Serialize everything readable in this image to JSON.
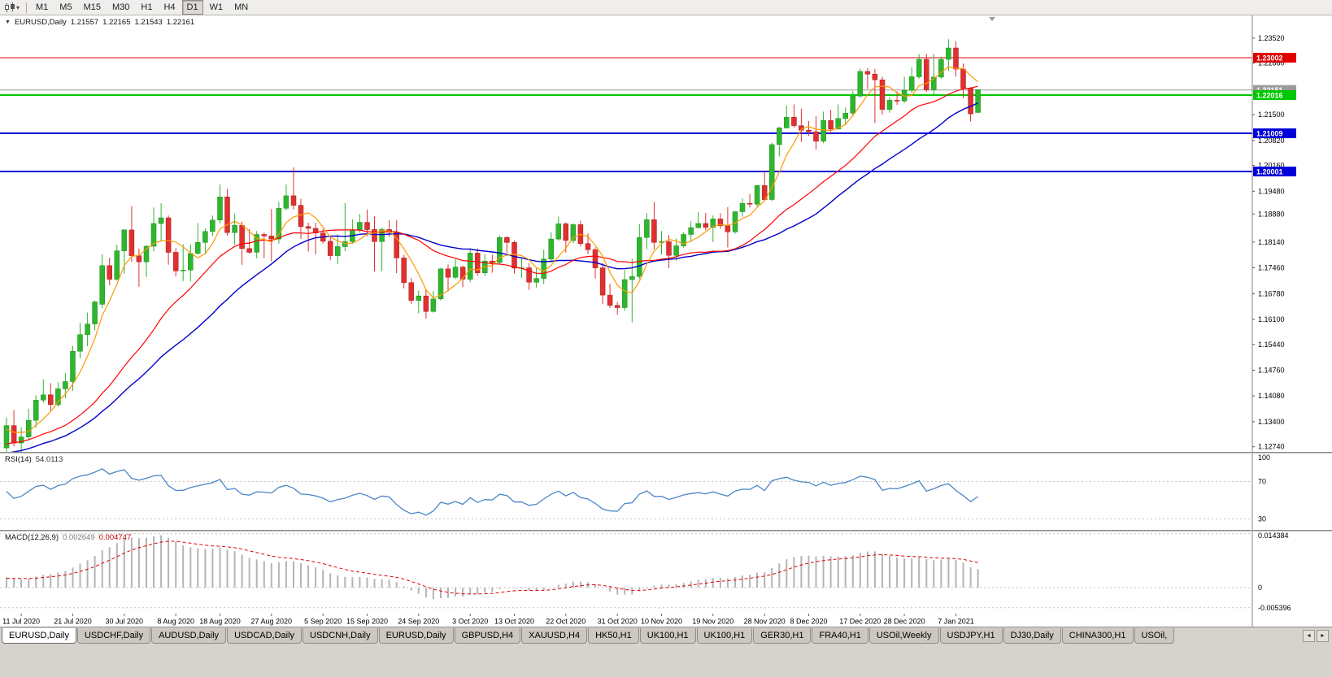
{
  "colors": {
    "up": "#2eb62e",
    "up_border": "#1f8a1f",
    "down": "#e03030",
    "down_border": "#a51c1c",
    "ma_fast": "#ff9900",
    "ma_mid": "#ff0000",
    "ma_slow": "#0000cc",
    "rsi_line": "#4a86c8",
    "macd_hist": "#b4b4b4",
    "macd_signal": "#e00000",
    "grid_dash": "#c4c4c4",
    "axis_border": "#808080",
    "panel_bg": "#ffffff",
    "chrome_bg": "#d6d3ce"
  },
  "toolbar": {
    "chart_type_icon": "candlestick-chart-icon",
    "dropdown_icon": "chevron-down-icon",
    "timeframes": [
      "M1",
      "M5",
      "M15",
      "M30",
      "H1",
      "H4",
      "D1",
      "W1",
      "MN"
    ],
    "active_timeframe": "D1"
  },
  "chart_header": {
    "symbol": "EURUSD,Daily",
    "open": "1.21557",
    "high": "1.22165",
    "low": "1.21543",
    "close": "1.22161"
  },
  "price_axis": {
    "ticks": [
      1.2352,
      1.2286,
      1.215,
      1.2082,
      1.2016,
      1.1948,
      1.1888,
      1.1814,
      1.1746,
      1.1678,
      1.161,
      1.1544,
      1.1476,
      1.1408,
      1.134,
      1.1274
    ]
  },
  "x_axis": {
    "labels": [
      {
        "label": "11 Jul 2020",
        "index": 2
      },
      {
        "label": "21 Jul 2020",
        "index": 9
      },
      {
        "label": "30 Jul 2020",
        "index": 16
      },
      {
        "label": "8 Aug 2020",
        "index": 23
      },
      {
        "label": "18 Aug 2020",
        "index": 29
      },
      {
        "label": "27 Aug 2020",
        "index": 36
      },
      {
        "label": "5 Sep 2020",
        "index": 43
      },
      {
        "label": "15 Sep 2020",
        "index": 49
      },
      {
        "label": "24 Sep 2020",
        "index": 56
      },
      {
        "label": "3 Oct 2020",
        "index": 63
      },
      {
        "label": "13 Oct 2020",
        "index": 69
      },
      {
        "label": "22 Oct 2020",
        "index": 76
      },
      {
        "label": "31 Oct 2020",
        "index": 83
      },
      {
        "label": "10 Nov 2020",
        "index": 89
      },
      {
        "label": "19 Nov 2020",
        "index": 96
      },
      {
        "label": "28 Nov 2020",
        "index": 103
      },
      {
        "label": "8 Dec 2020",
        "index": 109
      },
      {
        "label": "17 Dec 2020",
        "index": 116
      },
      {
        "label": "28 Dec 2020",
        "index": 122
      },
      {
        "label": "7 Jan 2021",
        "index": 129
      }
    ]
  },
  "rsi_panel": {
    "label": "RSI(14)",
    "value": "54.0113",
    "axis_labels": [
      {
        "text": "100",
        "value": 100
      },
      {
        "text": "70",
        "value": 70
      },
      {
        "text": "30",
        "value": 30
      }
    ],
    "level_lines": [
      70,
      30
    ]
  },
  "macd_panel": {
    "label": "MACD(12,26,9)",
    "value_main": "0.002649",
    "value_signal": "0.004747",
    "axis_labels": [
      {
        "text": "0.014384",
        "value": 0.014384
      },
      {
        "text": "0",
        "value": 0
      },
      {
        "text": "-0.005396",
        "value": -0.005396
      }
    ]
  },
  "tabs": {
    "labels": [
      "EURUSD,Daily",
      "USDCHF,Daily",
      "AUDUSD,Daily",
      "USDCAD,Daily",
      "USDCNH,Daily",
      "EURUSD,Daily",
      "GBPUSD,H4",
      "XAUUSD,H4",
      "HK50,H1",
      "UK100,H1",
      "UK100,H1",
      "GER30,H1",
      "FRA40,H1",
      "USOil,Weekly",
      "USDJPY,H1",
      "DJ30,Daily",
      "CHINA300,H1",
      "USOil,"
    ],
    "active_index": 0,
    "scroll_left_icon": "◄",
    "scroll_right_icon": "►"
  },
  "chart_data": {
    "type": "candlestick",
    "symbol": "EURUSD",
    "timeframe": "Daily",
    "visible_price_range": [
      1.1274,
      1.2352
    ],
    "hlines": [
      {
        "value": 1.23002,
        "label": "1.23002",
        "color": "#e00000",
        "width": 1,
        "type": "resistance"
      },
      {
        "value": 1.22151,
        "label": "1.22151",
        "color": "#9a9a9a",
        "width": 1,
        "type": "bid"
      },
      {
        "value": 1.22016,
        "label": "1.22016",
        "color": "#00c800",
        "width": 2,
        "type": "support"
      },
      {
        "value": 1.21009,
        "label": "1.21009",
        "color": "#0000d8",
        "width": 2,
        "type": "support"
      },
      {
        "value": 1.20001,
        "label": "1.20001",
        "color": "#0000d8",
        "width": 2,
        "type": "support"
      }
    ],
    "candles": [
      [
        1.1271,
        1.1351,
        1.1259,
        1.133
      ],
      [
        1.133,
        1.1371,
        1.1275,
        1.1284
      ],
      [
        1.1284,
        1.1325,
        1.1254,
        1.13
      ],
      [
        1.13,
        1.1374,
        1.1292,
        1.1344
      ],
      [
        1.1344,
        1.141,
        1.1325,
        1.1397
      ],
      [
        1.1397,
        1.1452,
        1.139,
        1.1411
      ],
      [
        1.1411,
        1.1442,
        1.137,
        1.1385
      ],
      [
        1.1385,
        1.1444,
        1.138,
        1.1427
      ],
      [
        1.1427,
        1.1468,
        1.1402,
        1.1446
      ],
      [
        1.1446,
        1.154,
        1.1422,
        1.1526
      ],
      [
        1.1526,
        1.1601,
        1.1507,
        1.157
      ],
      [
        1.157,
        1.1628,
        1.1539,
        1.1598
      ],
      [
        1.1598,
        1.166,
        1.1581,
        1.1656
      ],
      [
        1.165,
        1.1782,
        1.164,
        1.1752
      ],
      [
        1.1752,
        1.1773,
        1.17,
        1.1716
      ],
      [
        1.1716,
        1.1807,
        1.1712,
        1.1791
      ],
      [
        1.1791,
        1.1848,
        1.173,
        1.1846
      ],
      [
        1.1846,
        1.1909,
        1.1762,
        1.1778
      ],
      [
        1.1778,
        1.1797,
        1.1696,
        1.1762
      ],
      [
        1.1762,
        1.1806,
        1.1722,
        1.1803
      ],
      [
        1.1803,
        1.1905,
        1.179,
        1.1863
      ],
      [
        1.1863,
        1.1916,
        1.1818,
        1.1878
      ],
      [
        1.1878,
        1.1884,
        1.1754,
        1.1787
      ],
      [
        1.1787,
        1.1798,
        1.1723,
        1.1738
      ],
      [
        1.1738,
        1.1808,
        1.1711,
        1.174
      ],
      [
        1.174,
        1.1808,
        1.171,
        1.1784
      ],
      [
        1.1784,
        1.1864,
        1.178,
        1.1813
      ],
      [
        1.1813,
        1.185,
        1.1782,
        1.1842
      ],
      [
        1.1842,
        1.1884,
        1.183,
        1.1872
      ],
      [
        1.1872,
        1.1966,
        1.1863,
        1.1933
      ],
      [
        1.1933,
        1.1954,
        1.1831,
        1.1839
      ],
      [
        1.1839,
        1.1889,
        1.1807,
        1.1858
      ],
      [
        1.1858,
        1.1868,
        1.1754,
        1.1797
      ],
      [
        1.1797,
        1.1848,
        1.1783,
        1.1787
      ],
      [
        1.1787,
        1.1843,
        1.1771,
        1.1834
      ],
      [
        1.1834,
        1.1839,
        1.1771,
        1.183
      ],
      [
        1.183,
        1.1901,
        1.1763,
        1.1822
      ],
      [
        1.1822,
        1.192,
        1.181,
        1.1903
      ],
      [
        1.1903,
        1.1966,
        1.1898,
        1.1936
      ],
      [
        1.1936,
        1.2011,
        1.19,
        1.1911
      ],
      [
        1.1911,
        1.1928,
        1.1822,
        1.1855
      ],
      [
        1.1855,
        1.1865,
        1.1789,
        1.185
      ],
      [
        1.185,
        1.1865,
        1.1781,
        1.1838
      ],
      [
        1.1838,
        1.1849,
        1.181,
        1.1816
      ],
      [
        1.1816,
        1.1827,
        1.1766,
        1.1778
      ],
      [
        1.1778,
        1.1834,
        1.1756,
        1.1802
      ],
      [
        1.1802,
        1.1917,
        1.179,
        1.1815
      ],
      [
        1.1815,
        1.1874,
        1.1809,
        1.1845
      ],
      [
        1.1845,
        1.1888,
        1.1839,
        1.1866
      ],
      [
        1.1866,
        1.19,
        1.1829,
        1.1847
      ],
      [
        1.1847,
        1.1882,
        1.1737,
        1.1815
      ],
      [
        1.1815,
        1.1852,
        1.1737,
        1.1847
      ],
      [
        1.1847,
        1.1872,
        1.1827,
        1.184
      ],
      [
        1.184,
        1.1872,
        1.1732,
        1.1772
      ],
      [
        1.1772,
        1.178,
        1.1692,
        1.1707
      ],
      [
        1.1707,
        1.1719,
        1.1651,
        1.166
      ],
      [
        1.166,
        1.1686,
        1.1626,
        1.1672
      ],
      [
        1.1672,
        1.1688,
        1.1612,
        1.1631
      ],
      [
        1.1631,
        1.1685,
        1.1628,
        1.1664
      ],
      [
        1.1664,
        1.1746,
        1.166,
        1.1743
      ],
      [
        1.1743,
        1.1755,
        1.1684,
        1.1721
      ],
      [
        1.1721,
        1.1769,
        1.1717,
        1.1748
      ],
      [
        1.1748,
        1.1752,
        1.1695,
        1.1716
      ],
      [
        1.1716,
        1.1798,
        1.1708,
        1.1785
      ],
      [
        1.1785,
        1.1797,
        1.1725,
        1.1733
      ],
      [
        1.1733,
        1.1782,
        1.1725,
        1.1764
      ],
      [
        1.1764,
        1.1781,
        1.1733,
        1.176
      ],
      [
        1.176,
        1.1831,
        1.1755,
        1.1826
      ],
      [
        1.1826,
        1.183,
        1.1786,
        1.1813
      ],
      [
        1.1813,
        1.1818,
        1.1731,
        1.1745
      ],
      [
        1.1745,
        1.1773,
        1.172,
        1.1746
      ],
      [
        1.1746,
        1.1758,
        1.1688,
        1.1708
      ],
      [
        1.1708,
        1.1746,
        1.1694,
        1.1718
      ],
      [
        1.1718,
        1.1794,
        1.1703,
        1.1769
      ],
      [
        1.1769,
        1.184,
        1.176,
        1.1822
      ],
      [
        1.1822,
        1.1881,
        1.1817,
        1.1862
      ],
      [
        1.1862,
        1.1866,
        1.1786,
        1.1818
      ],
      [
        1.1818,
        1.1863,
        1.1811,
        1.186
      ],
      [
        1.186,
        1.187,
        1.1803,
        1.181
      ],
      [
        1.181,
        1.1837,
        1.1782,
        1.1794
      ],
      [
        1.1794,
        1.18,
        1.1718,
        1.1746
      ],
      [
        1.1746,
        1.1759,
        1.165,
        1.1674
      ],
      [
        1.1674,
        1.1704,
        1.164,
        1.1647
      ],
      [
        1.1647,
        1.1656,
        1.1622,
        1.1641
      ],
      [
        1.1641,
        1.174,
        1.1633,
        1.1715
      ],
      [
        1.1715,
        1.177,
        1.1602,
        1.1723
      ],
      [
        1.1723,
        1.1861,
        1.1716,
        1.1826
      ],
      [
        1.1826,
        1.189,
        1.1795,
        1.1873
      ],
      [
        1.1873,
        1.192,
        1.1795,
        1.1813
      ],
      [
        1.1813,
        1.1843,
        1.1781,
        1.1815
      ],
      [
        1.1815,
        1.1832,
        1.1745,
        1.1779
      ],
      [
        1.1779,
        1.1823,
        1.1765,
        1.1804
      ],
      [
        1.1804,
        1.184,
        1.1799,
        1.1834
      ],
      [
        1.1834,
        1.1869,
        1.1814,
        1.1852
      ],
      [
        1.1852,
        1.1894,
        1.185,
        1.1863
      ],
      [
        1.1863,
        1.1891,
        1.1845,
        1.1853
      ],
      [
        1.1853,
        1.1884,
        1.1814,
        1.1875
      ],
      [
        1.1875,
        1.189,
        1.1849,
        1.1857
      ],
      [
        1.1857,
        1.1906,
        1.18,
        1.1841
      ],
      [
        1.1841,
        1.1895,
        1.1836,
        1.1894
      ],
      [
        1.1894,
        1.1929,
        1.1881,
        1.1916
      ],
      [
        1.1916,
        1.1941,
        1.1905,
        1.1914
      ],
      [
        1.1914,
        1.1965,
        1.1908,
        1.1963
      ],
      [
        1.1963,
        1.2003,
        1.1924,
        1.1926
      ],
      [
        1.1926,
        1.2076,
        1.1922,
        1.2071
      ],
      [
        1.2071,
        1.2118,
        1.204,
        1.2115
      ],
      [
        1.2115,
        1.2174,
        1.2114,
        1.2143
      ],
      [
        1.2143,
        1.2177,
        1.2116,
        1.2121
      ],
      [
        1.2121,
        1.2166,
        1.2078,
        1.2109
      ],
      [
        1.2109,
        1.2133,
        1.2094,
        1.2105
      ],
      [
        1.2105,
        1.2146,
        1.2058,
        1.208
      ],
      [
        1.208,
        1.2158,
        1.2075,
        1.2135
      ],
      [
        1.2135,
        1.2163,
        1.21,
        1.2112
      ],
      [
        1.2112,
        1.2177,
        1.211,
        1.214
      ],
      [
        1.214,
        1.2169,
        1.2122,
        1.2154
      ],
      [
        1.2154,
        1.2212,
        1.2145,
        1.2199
      ],
      [
        1.2199,
        1.2272,
        1.2195,
        1.2264
      ],
      [
        1.2264,
        1.2273,
        1.2218,
        1.2257
      ],
      [
        1.2257,
        1.227,
        1.2129,
        1.2242
      ],
      [
        1.2242,
        1.225,
        1.2151,
        1.2164
      ],
      [
        1.2164,
        1.2196,
        1.2155,
        1.2188
      ],
      [
        1.2188,
        1.2212,
        1.2176,
        1.2186
      ],
      [
        1.2186,
        1.225,
        1.2181,
        1.2214
      ],
      [
        1.2214,
        1.2275,
        1.2208,
        1.225
      ],
      [
        1.225,
        1.231,
        1.2245,
        1.2296
      ],
      [
        1.2296,
        1.231,
        1.221,
        1.2216
      ],
      [
        1.2216,
        1.231,
        1.22,
        1.2249
      ],
      [
        1.2249,
        1.2303,
        1.2245,
        1.2296
      ],
      [
        1.2296,
        1.2349,
        1.2266,
        1.2326
      ],
      [
        1.2326,
        1.2344,
        1.225,
        1.227
      ],
      [
        1.227,
        1.2285,
        1.2193,
        1.222
      ],
      [
        1.222,
        1.2223,
        1.2132,
        1.2152
      ],
      [
        1.21557,
        1.22165,
        1.21543,
        1.22161
      ]
    ]
  }
}
